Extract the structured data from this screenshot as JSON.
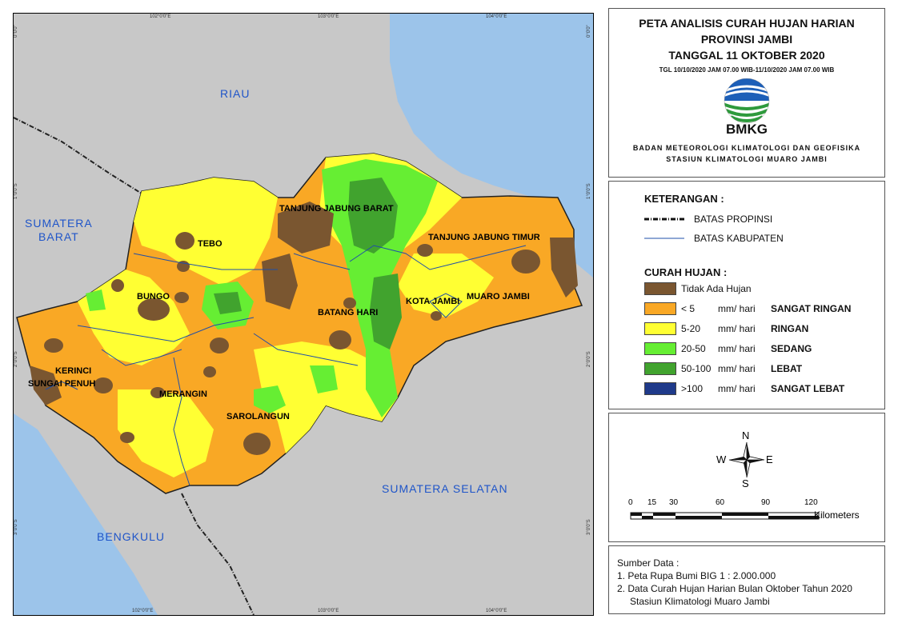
{
  "map": {
    "coords_top": [
      "102°0'0\"E",
      "103°0'0\"E",
      "104°0'0\"E"
    ],
    "coords_bottom": [
      "102°0'0\"E",
      "103°0'0\"E",
      "104°0'0\"E"
    ],
    "coords_left": [
      "0°0'0\"",
      "1°0'0\"S",
      "2°0'0\"S",
      "3°0'0\"S"
    ],
    "coords_right": [
      "0°0'0\"",
      "1°0'0\"S",
      "2°0'0\"S",
      "3°0'0\"S"
    ],
    "provinces": {
      "riau": "RIAU",
      "sumbar": "SUMATERA\nBARAT",
      "sumsel": "SUMATERA SELATAN",
      "bengkulu": "BENGKULU"
    },
    "regencies": {
      "tebo": "TEBO",
      "bungo": "BUNGO",
      "tjb": "TANJUNG JABUNG BARAT",
      "tjt": "TANJUNG JABUNG TIMUR",
      "batanghari": "BATANG HARI",
      "kotajambi": "KOTA JAMBI",
      "muarojambi": "MUARO JAMBI",
      "kerinci": "KERINCI",
      "sungaipenuh": "SUNGAI PENUH",
      "merangin": "MERANGIN",
      "sarolangun": "SAROLANGUN"
    },
    "colors": {
      "sea": "#9cc4ea",
      "land": "#c8c8c8",
      "none": "#7a5630",
      "very_light": "#f9a825",
      "light": "#ffff33",
      "moderate": "#66ee33",
      "heavy": "#41a32e",
      "very_heavy": "#1f3a8a"
    }
  },
  "title": {
    "line1": "PETA ANALISIS CURAH HUJAN HARIAN",
    "line2": "PROVINSI JAMBI",
    "line3": "TANGGAL 11 OKTOBER 2020",
    "period": "TGL 10/10/2020 JAM 07.00 WIB-11/10/2020 JAM 07.00 WIB",
    "logo_text": "BMKG",
    "agency1": "BADAN METEOROLOGI KLIMATOLOGI DAN GEOFISIKA",
    "agency2": "STASIUN KLIMATOLOGI MUARO JAMBI"
  },
  "legend": {
    "heading": "KETERANGAN :",
    "prov_boundary": "BATAS PROPINSI",
    "kab_boundary": "BATAS KABUPATEN",
    "rain_heading": "CURAH HUJAN :",
    "classes": [
      {
        "range": "Tidak Ada Hujan",
        "unit": "",
        "category": "",
        "color": "#7a5630"
      },
      {
        "range": "< 5",
        "unit": "mm/ hari",
        "category": "SANGAT RINGAN",
        "color": "#f9a825"
      },
      {
        "range": "5-20",
        "unit": "mm/ hari",
        "category": "RINGAN",
        "color": "#ffff33"
      },
      {
        "range": "20-50",
        "unit": "mm/ hari",
        "category": "SEDANG",
        "color": "#66ee33"
      },
      {
        "range": "50-100",
        "unit": "mm/ hari",
        "category": "LEBAT",
        "color": "#41a32e"
      },
      {
        "range": ">100",
        "unit": "mm/ hari",
        "category": "SANGAT LEBAT",
        "color": "#1f3a8a"
      }
    ]
  },
  "compass": {
    "n": "N",
    "s": "S",
    "e": "E",
    "w": "W"
  },
  "scale": {
    "ticks": [
      "0",
      "15",
      "30",
      "60",
      "90",
      "120"
    ],
    "unit": "Kilometers"
  },
  "source": {
    "heading": "Sumber Data :",
    "item1": "1. Peta Rupa Bumi BIG 1 : 2.000.000",
    "item2": "2. Data Curah Hujan Harian Bulan Oktober Tahun 2020",
    "item2b": "Stasiun Klimatologi Muaro Jambi"
  }
}
